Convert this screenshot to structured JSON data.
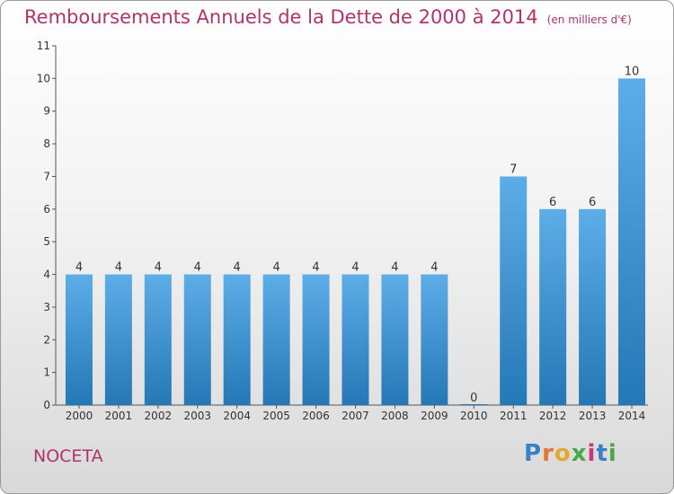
{
  "title": "Remboursements Annuels de la Dette de 2000 à 2014",
  "unit_label": "(en milliers d'€)",
  "commune": "NOCETA",
  "logo": "Proxiti",
  "colors": {
    "title": "#b0336b",
    "bar_light": "#5dade8",
    "bar_dark": "#2478b5"
  },
  "chart_data": {
    "type": "bar",
    "categories": [
      "2000",
      "2001",
      "2002",
      "2003",
      "2004",
      "2005",
      "2006",
      "2007",
      "2008",
      "2009",
      "2010",
      "2011",
      "2012",
      "2013",
      "2014"
    ],
    "values": [
      4,
      4,
      4,
      4,
      4,
      4,
      4,
      4,
      4,
      4,
      0,
      7,
      6,
      6,
      10
    ],
    "ylim": [
      0,
      11
    ],
    "yticks": [
      0,
      1,
      2,
      3,
      4,
      5,
      6,
      7,
      8,
      9,
      10,
      11
    ],
    "grid": false,
    "xlabel": "",
    "ylabel": ""
  }
}
